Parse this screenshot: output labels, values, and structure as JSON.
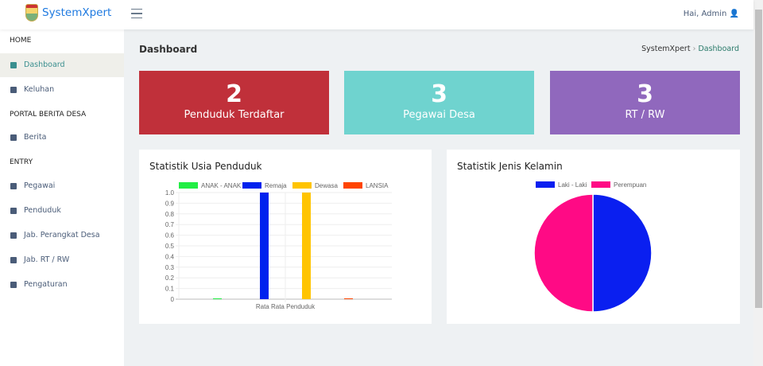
{
  "header": {
    "brand": "SystemXpert",
    "user": "Hai, Admin"
  },
  "sidebar": {
    "sections": [
      "HOME",
      "PORTAL BERITA DESA",
      "ENTRY"
    ],
    "items": [
      {
        "label": "Dashboard",
        "icon": "dashboard-icon"
      },
      {
        "label": "Keluhan",
        "icon": "message-icon"
      },
      {
        "label": "Berita",
        "icon": "news-icon"
      },
      {
        "label": "Pegawai",
        "icon": "id-card-icon"
      },
      {
        "label": "Penduduk",
        "icon": "people-icon"
      },
      {
        "label": "Jab. Perangkat Desa",
        "icon": "home-icon"
      },
      {
        "label": "Jab. RT / RW",
        "icon": "store-icon"
      },
      {
        "label": "Pengaturan",
        "icon": "gear-icon"
      }
    ]
  },
  "page": {
    "title": "Dashboard",
    "breadcrumb": [
      "SystemXpert",
      "Dashboard"
    ]
  },
  "cards": [
    {
      "value": "2",
      "label": "Penduduk Terdaftar",
      "color": "#c0303a"
    },
    {
      "value": "3",
      "label": "Pegawai Desa",
      "color": "#6fd3cf"
    },
    {
      "value": "3",
      "label": "RT / RW",
      "color": "#9068bd"
    }
  ],
  "chart_data": [
    {
      "type": "bar",
      "title": "Statistik Usia Penduduk",
      "categories": [
        "Rata Rata Penduduk"
      ],
      "xlabel": "Rata Rata Penduduk",
      "ylim": [
        0,
        1
      ],
      "yticks": [
        "0",
        "0.1",
        "0.2",
        "0.3",
        "0.4",
        "0.5",
        "0.6",
        "0.7",
        "0.8",
        "0.9",
        "1.0"
      ],
      "legend": "top",
      "grid": true,
      "series": [
        {
          "name": "ANAK - ANAK",
          "values": [
            0
          ],
          "color": "#22ee44"
        },
        {
          "name": "Remaja",
          "values": [
            1
          ],
          "color": "#0022ee"
        },
        {
          "name": "Dewasa",
          "values": [
            1
          ],
          "color": "#ffc400"
        },
        {
          "name": "LANSIA",
          "values": [
            0
          ],
          "color": "#ff4400"
        }
      ]
    },
    {
      "type": "pie",
      "title": "Statistik Jenis Kelamin",
      "legend": "top",
      "labels": [
        "Laki - Laki",
        "Perempuan"
      ],
      "values": [
        1,
        1
      ],
      "colors": [
        "#0a1ff0",
        "#ff0a85"
      ]
    }
  ]
}
